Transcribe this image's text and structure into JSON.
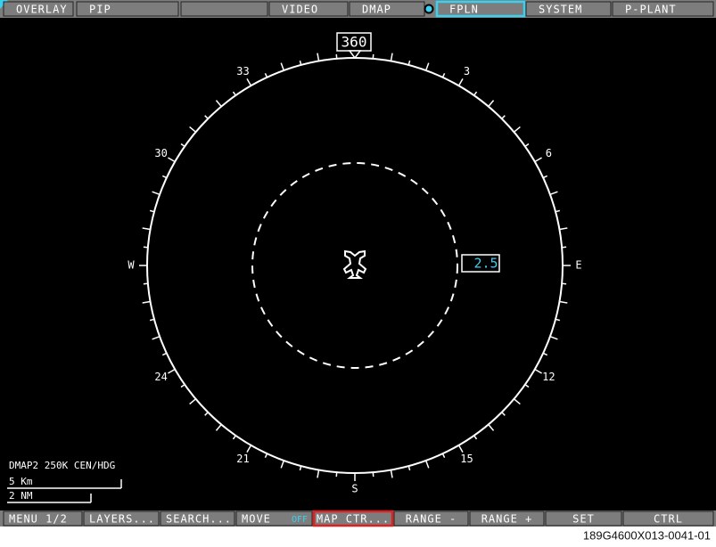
{
  "top_menu": {
    "buttons": [
      "OVERLAY",
      "PIP",
      "VIDEO",
      "DMAP",
      "FPLN",
      "SYSTEM",
      "P-PLANT"
    ]
  },
  "compass": {
    "heading": "360",
    "labels": [
      "3",
      "6",
      "E",
      "12",
      "15",
      "S",
      "21",
      "24",
      "W",
      "30",
      "33"
    ],
    "range": "2.5"
  },
  "map_info": {
    "mode": "DMAP2  250K  CEN/HDG",
    "scale_km": "5 Km",
    "scale_nm": "2 NM"
  },
  "bottom_menu": {
    "buttons": [
      "MENU 1/2",
      "LAYERS...",
      "SEARCH...",
      "MOVE",
      "MAP CTR...",
      "RANGE -",
      "RANGE +",
      "SET",
      "CTRL"
    ],
    "indicator": "OFF"
  },
  "caption": "189G4600X013-0041-01"
}
